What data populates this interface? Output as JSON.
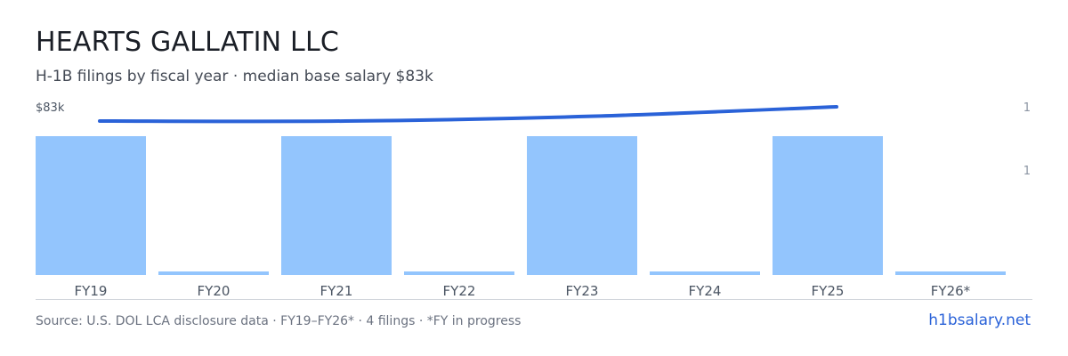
{
  "header": {
    "title": "HEARTS GALLATIN LLC",
    "subtitle": "H-1B filings by fiscal year · median base salary $83k"
  },
  "footer": {
    "source": "Source: U.S. DOL LCA disclosure data · FY19–FY26* · 4 filings · *FY in progress",
    "brand": "h1bsalary.net"
  },
  "colors": {
    "bar": "#93c5fd",
    "line": "#2a62d8",
    "axis": "#d1d5db",
    "tick_text": "#4b5563",
    "right_tick_text": "#8b95a3"
  },
  "chart_data": {
    "type": "bar",
    "categories": [
      "FY19",
      "FY20",
      "FY21",
      "FY22",
      "FY23",
      "FY24",
      "FY25",
      "FY26*"
    ],
    "series": [
      {
        "type": "bar",
        "values": [
          1,
          0,
          1,
          0,
          1,
          0,
          1,
          0
        ]
      },
      {
        "type": "line",
        "x": [
          "FY19",
          "FY21",
          "FY23",
          "FY25"
        ],
        "values": [
          80000,
          80000,
          81000,
          83000
        ]
      }
    ],
    "left_axis_label": "$83k",
    "right_tick_labels": [
      "1",
      "1"
    ],
    "grid": false
  }
}
